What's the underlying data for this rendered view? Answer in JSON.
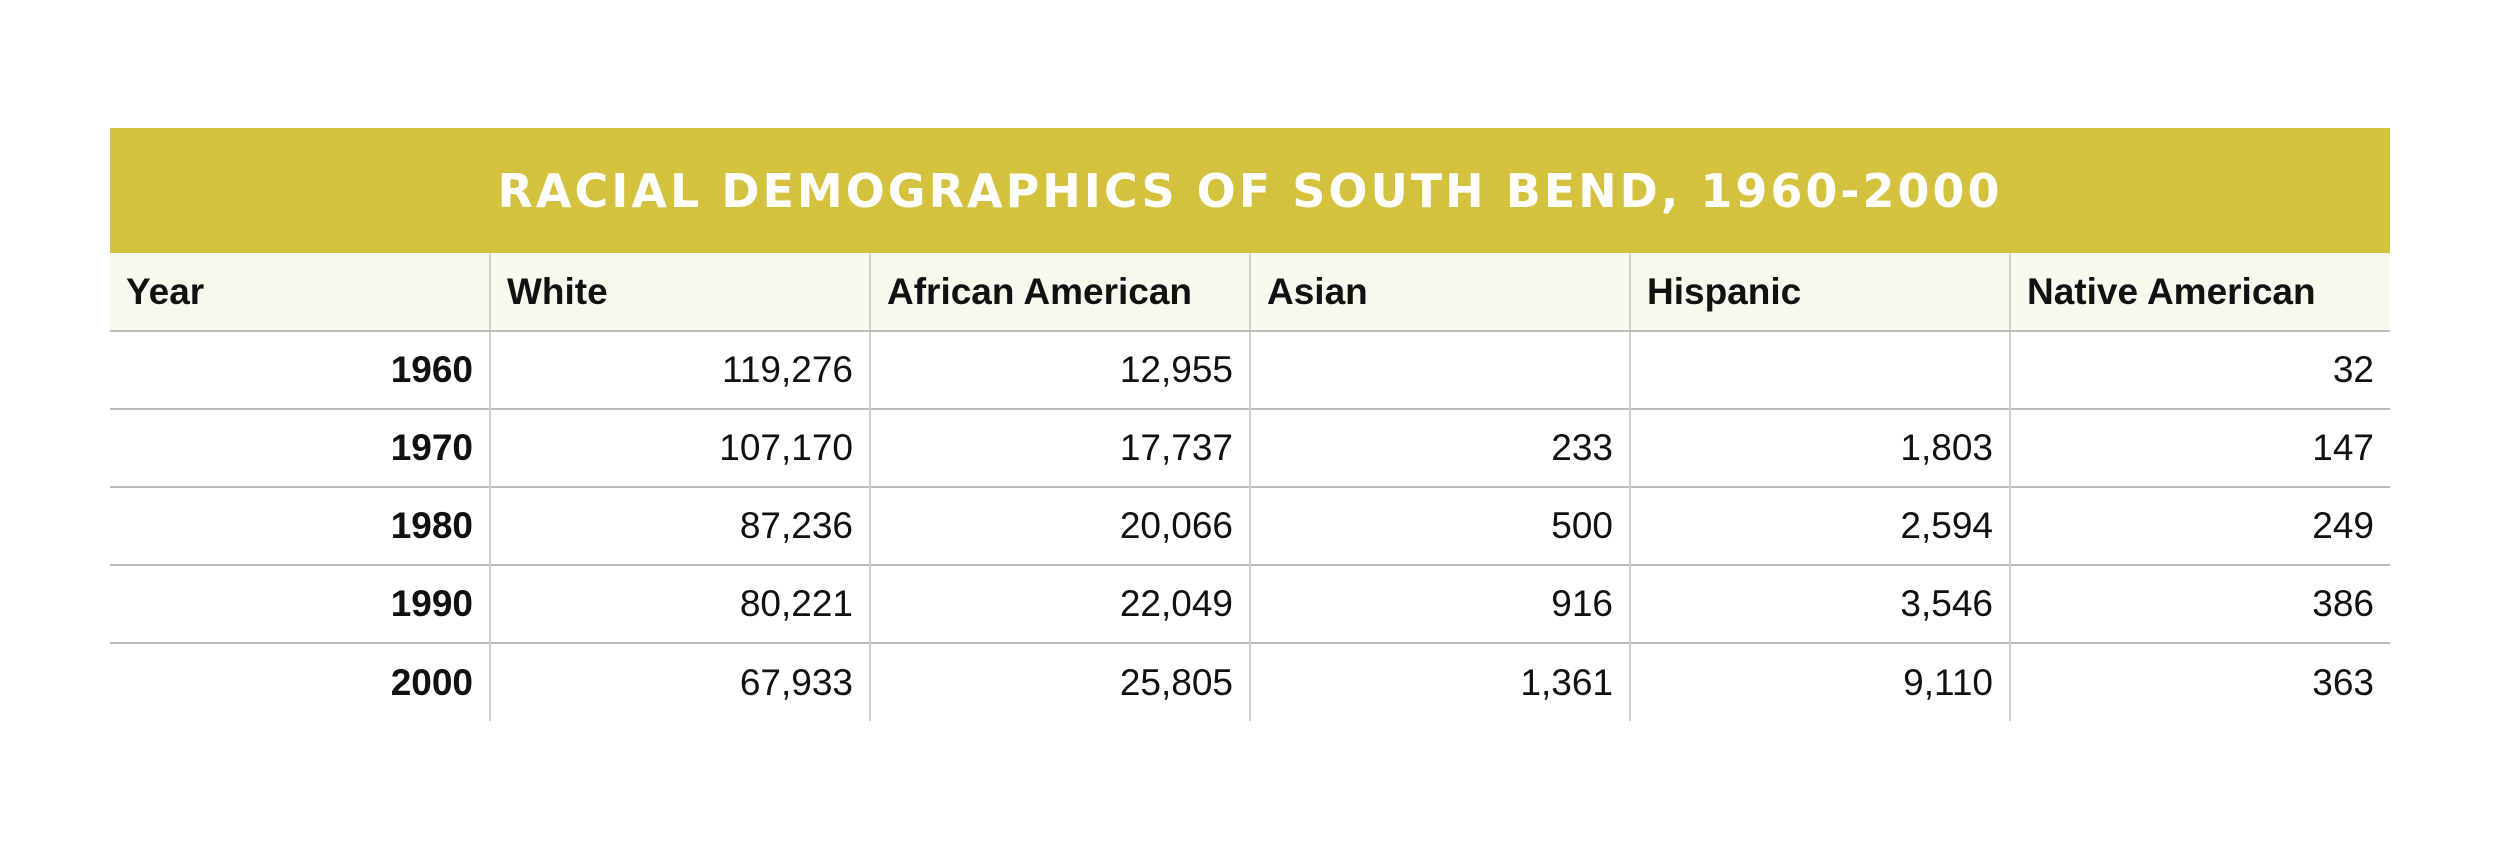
{
  "table": {
    "title": "RACIAL DEMOGRAPHICS OF SOUTH BEND, 1960-2000",
    "columns": [
      "Year",
      "White",
      "African American",
      "Asian",
      "Hispanic",
      "Native American"
    ],
    "rows": [
      [
        "1960",
        "119,276",
        "12,955",
        "",
        "",
        "32"
      ],
      [
        "1970",
        "107,170",
        "17,737",
        "233",
        "1,803",
        "147"
      ],
      [
        "1980",
        "87,236",
        "20,066",
        "500",
        "2,594",
        "249"
      ],
      [
        "1990",
        "80,221",
        "22,049",
        "916",
        "3,546",
        "386"
      ],
      [
        "2000",
        "67,933",
        "25,805",
        "1,361",
        "9,110",
        "363"
      ]
    ]
  },
  "colors": {
    "title_bg": "#d4c23e",
    "title_text": "#ffffff",
    "header_bg": "#f9f8ee",
    "border": "#bdbdbd"
  }
}
